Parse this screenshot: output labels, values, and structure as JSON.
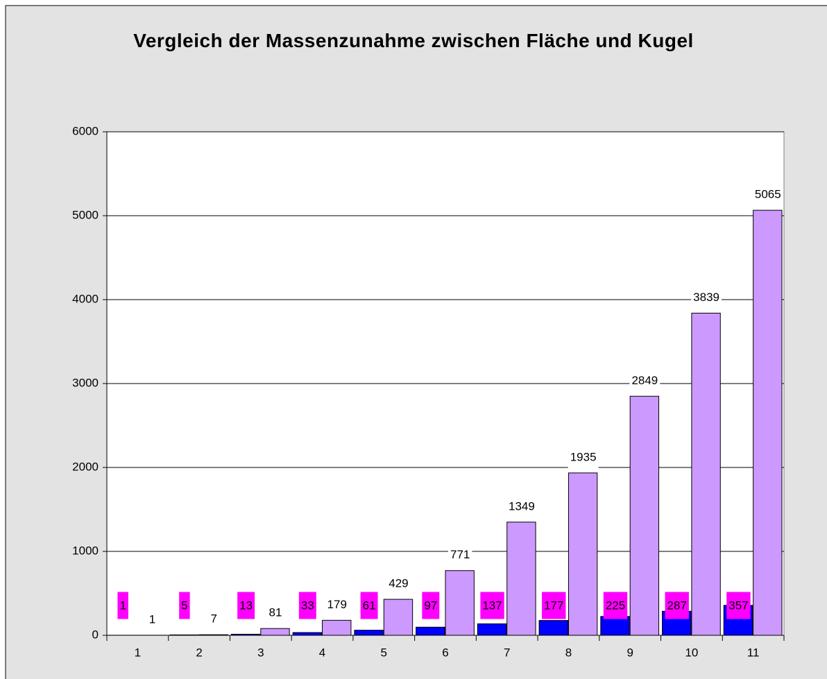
{
  "chart_data": {
    "type": "bar",
    "title": "Vergleich der Massenzunahme zwischen Fläche und Kugel",
    "categories": [
      "1",
      "2",
      "3",
      "4",
      "5",
      "6",
      "7",
      "8",
      "9",
      "10",
      "11"
    ],
    "series": [
      {
        "color": "#0000ff",
        "label_background": "#ff00ff",
        "values": [
          1,
          5,
          13,
          33,
          61,
          97,
          137,
          177,
          225,
          287,
          357
        ]
      },
      {
        "color": "#cc99ff",
        "label_background": "#ffffff",
        "values": [
          1,
          7,
          81,
          179,
          429,
          771,
          1349,
          1935,
          2849,
          3839,
          5065
        ]
      }
    ],
    "ylim": [
      0,
      6000
    ],
    "yticks": [
      0,
      1000,
      2000,
      3000,
      4000,
      5000,
      6000
    ],
    "grid": true
  }
}
